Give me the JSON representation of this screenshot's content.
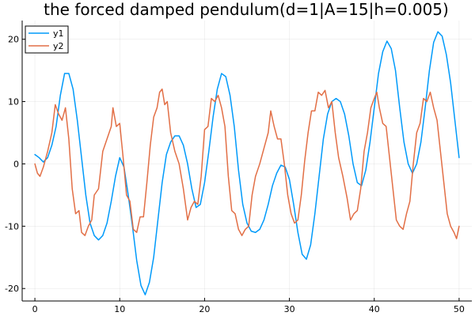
{
  "chart_data": {
    "type": "line",
    "title": "the forced damped pendulum(d=1|A=15|h=0.005)",
    "xlabel": "",
    "ylabel": "",
    "xlim": [
      -1.5,
      51.5
    ],
    "ylim": [
      -22,
      23
    ],
    "x_ticks": [
      0,
      10,
      20,
      30,
      40,
      50
    ],
    "y_ticks": [
      -20,
      -10,
      0,
      10,
      20
    ],
    "x_tick_labels": [
      "0",
      "10",
      "20",
      "30",
      "40",
      "50"
    ],
    "y_tick_labels": [
      "-20",
      "-10",
      "0",
      "10",
      "20"
    ],
    "grid": true,
    "legend_position": "top-left",
    "series": [
      {
        "name": "y1",
        "color": "#009AFA",
        "points": [
          [
            0,
            1.5
          ],
          [
            0.5,
            1.0
          ],
          [
            1.0,
            0.3
          ],
          [
            1.5,
            1.0
          ],
          [
            2.0,
            3.0
          ],
          [
            2.5,
            6.0
          ],
          [
            3.0,
            11.0
          ],
          [
            3.5,
            14.5
          ],
          [
            4.0,
            14.5
          ],
          [
            4.5,
            12.0
          ],
          [
            5.0,
            7.0
          ],
          [
            5.5,
            1.0
          ],
          [
            6.0,
            -5.0
          ],
          [
            6.5,
            -9.5
          ],
          [
            7.0,
            -11.5
          ],
          [
            7.5,
            -12.2
          ],
          [
            8.0,
            -11.5
          ],
          [
            8.5,
            -9.5
          ],
          [
            9.0,
            -6.0
          ],
          [
            9.5,
            -2.0
          ],
          [
            10.0,
            1.0
          ],
          [
            10.5,
            -0.5
          ],
          [
            11.0,
            -5.0
          ],
          [
            11.5,
            -10.0
          ],
          [
            12.0,
            -15.5
          ],
          [
            12.5,
            -19.5
          ],
          [
            13.0,
            -21.0
          ],
          [
            13.5,
            -19.0
          ],
          [
            14.0,
            -15.0
          ],
          [
            14.5,
            -9.0
          ],
          [
            15.0,
            -3.0
          ],
          [
            15.5,
            1.5
          ],
          [
            16.0,
            3.5
          ],
          [
            16.5,
            4.5
          ],
          [
            17.0,
            4.5
          ],
          [
            17.5,
            3.0
          ],
          [
            18.0,
            0.0
          ],
          [
            18.5,
            -4.0
          ],
          [
            19.0,
            -7.0
          ],
          [
            19.5,
            -6.5
          ],
          [
            20.0,
            -3.0
          ],
          [
            20.5,
            2.0
          ],
          [
            21.0,
            7.5
          ],
          [
            21.5,
            12.0
          ],
          [
            22.0,
            14.5
          ],
          [
            22.5,
            14.0
          ],
          [
            23.0,
            11.0
          ],
          [
            23.5,
            6.0
          ],
          [
            24.0,
            -1.0
          ],
          [
            24.5,
            -6.5
          ],
          [
            25.0,
            -9.5
          ],
          [
            25.5,
            -10.8
          ],
          [
            26.0,
            -11.0
          ],
          [
            26.5,
            -10.5
          ],
          [
            27.0,
            -9.0
          ],
          [
            27.5,
            -6.5
          ],
          [
            28.0,
            -3.5
          ],
          [
            28.5,
            -1.5
          ],
          [
            29.0,
            -0.2
          ],
          [
            29.5,
            -0.5
          ],
          [
            30.0,
            -2.5
          ],
          [
            30.5,
            -6.5
          ],
          [
            31.0,
            -11.0
          ],
          [
            31.5,
            -14.5
          ],
          [
            32.0,
            -15.3
          ],
          [
            32.5,
            -13.0
          ],
          [
            33.0,
            -8.0
          ],
          [
            33.5,
            -2.0
          ],
          [
            34.0,
            4.0
          ],
          [
            34.5,
            8.0
          ],
          [
            35.0,
            10.0
          ],
          [
            35.5,
            10.5
          ],
          [
            36.0,
            10.0
          ],
          [
            36.5,
            8.0
          ],
          [
            37.0,
            4.5
          ],
          [
            37.5,
            0.0
          ],
          [
            38.0,
            -3.0
          ],
          [
            38.5,
            -3.5
          ],
          [
            39.0,
            -1.0
          ],
          [
            39.5,
            3.5
          ],
          [
            40.0,
            9.0
          ],
          [
            40.5,
            14.5
          ],
          [
            41.0,
            18.0
          ],
          [
            41.5,
            19.7
          ],
          [
            42.0,
            18.5
          ],
          [
            42.5,
            15.0
          ],
          [
            43.0,
            9.0
          ],
          [
            43.5,
            3.5
          ],
          [
            44.0,
            0.0
          ],
          [
            44.5,
            -1.5
          ],
          [
            45.0,
            0.0
          ],
          [
            45.5,
            3.5
          ],
          [
            46.0,
            9.0
          ],
          [
            46.5,
            15.0
          ],
          [
            47.0,
            19.5
          ],
          [
            47.5,
            21.2
          ],
          [
            48.0,
            20.5
          ],
          [
            48.5,
            17.5
          ],
          [
            49.0,
            13.0
          ],
          [
            49.5,
            7.0
          ],
          [
            50.0,
            1.0
          ]
        ]
      },
      {
        "name": "y2",
        "color": "#E26F46",
        "points": [
          [
            0,
            0.0
          ],
          [
            0.3,
            -1.5
          ],
          [
            0.6,
            -2.0
          ],
          [
            1.0,
            -0.5
          ],
          [
            1.5,
            2.0
          ],
          [
            2.0,
            5.0
          ],
          [
            2.4,
            9.5
          ],
          [
            2.8,
            8.0
          ],
          [
            3.2,
            7.0
          ],
          [
            3.6,
            9.0
          ],
          [
            4.0,
            4.0
          ],
          [
            4.4,
            -4.0
          ],
          [
            4.8,
            -8.0
          ],
          [
            5.2,
            -7.5
          ],
          [
            5.5,
            -11.0
          ],
          [
            5.9,
            -11.5
          ],
          [
            6.3,
            -10.0
          ],
          [
            6.7,
            -9.0
          ],
          [
            7.0,
            -5.0
          ],
          [
            7.5,
            -4.0
          ],
          [
            8.0,
            2.0
          ],
          [
            8.5,
            4.0
          ],
          [
            9.0,
            6.0
          ],
          [
            9.2,
            9.0
          ],
          [
            9.6,
            6.0
          ],
          [
            10.0,
            6.5
          ],
          [
            10.4,
            1.0
          ],
          [
            10.8,
            -5.0
          ],
          [
            11.2,
            -6.0
          ],
          [
            11.6,
            -10.5
          ],
          [
            12.0,
            -11.0
          ],
          [
            12.4,
            -8.5
          ],
          [
            12.8,
            -8.5
          ],
          [
            13.2,
            -3.0
          ],
          [
            13.6,
            3.0
          ],
          [
            14.0,
            7.5
          ],
          [
            14.4,
            9.0
          ],
          [
            14.7,
            11.5
          ],
          [
            15.0,
            12.0
          ],
          [
            15.3,
            9.5
          ],
          [
            15.6,
            10.0
          ],
          [
            16.0,
            5.0
          ],
          [
            16.5,
            2.0
          ],
          [
            17.0,
            0.0
          ],
          [
            17.5,
            -4.0
          ],
          [
            18.0,
            -9.0
          ],
          [
            18.4,
            -7.0
          ],
          [
            18.8,
            -6.0
          ],
          [
            19.2,
            -6.5
          ],
          [
            19.6,
            -2.0
          ],
          [
            20.0,
            5.5
          ],
          [
            20.4,
            6.0
          ],
          [
            20.8,
            10.5
          ],
          [
            21.2,
            10.0
          ],
          [
            21.6,
            11.0
          ],
          [
            22.0,
            9.0
          ],
          [
            22.4,
            6.0
          ],
          [
            22.8,
            -2.0
          ],
          [
            23.2,
            -7.5
          ],
          [
            23.6,
            -8.0
          ],
          [
            24.0,
            -10.5
          ],
          [
            24.4,
            -11.5
          ],
          [
            24.8,
            -10.5
          ],
          [
            25.2,
            -10.0
          ],
          [
            25.6,
            -5.0
          ],
          [
            26.0,
            -2.0
          ],
          [
            26.5,
            0.0
          ],
          [
            27.0,
            2.5
          ],
          [
            27.5,
            5.0
          ],
          [
            27.8,
            8.5
          ],
          [
            28.2,
            6.0
          ],
          [
            28.6,
            4.0
          ],
          [
            29.0,
            4.0
          ],
          [
            29.4,
            0.0
          ],
          [
            29.8,
            -5.0
          ],
          [
            30.2,
            -8.0
          ],
          [
            30.6,
            -9.5
          ],
          [
            31.0,
            -9.0
          ],
          [
            31.4,
            -5.0
          ],
          [
            31.8,
            0.5
          ],
          [
            32.2,
            5.0
          ],
          [
            32.6,
            8.5
          ],
          [
            33.0,
            8.5
          ],
          [
            33.4,
            11.5
          ],
          [
            33.8,
            11.0
          ],
          [
            34.2,
            11.8
          ],
          [
            34.6,
            9.0
          ],
          [
            35.0,
            10.0
          ],
          [
            35.4,
            5.0
          ],
          [
            35.8,
            1.0
          ],
          [
            36.3,
            -2.0
          ],
          [
            36.8,
            -5.5
          ],
          [
            37.2,
            -9.0
          ],
          [
            37.6,
            -8.0
          ],
          [
            38.0,
            -7.5
          ],
          [
            38.4,
            -4.0
          ],
          [
            38.8,
            2.0
          ],
          [
            39.2,
            5.0
          ],
          [
            39.6,
            9.0
          ],
          [
            40.0,
            10.5
          ],
          [
            40.3,
            11.5
          ],
          [
            40.6,
            9.0
          ],
          [
            41.0,
            6.5
          ],
          [
            41.4,
            6.0
          ],
          [
            41.8,
            1.0
          ],
          [
            42.2,
            -4.0
          ],
          [
            42.6,
            -9.0
          ],
          [
            43.0,
            -10.0
          ],
          [
            43.4,
            -10.5
          ],
          [
            43.8,
            -8.0
          ],
          [
            44.2,
            -6.0
          ],
          [
            44.6,
            0.0
          ],
          [
            45.0,
            5.0
          ],
          [
            45.4,
            6.5
          ],
          [
            45.8,
            10.5
          ],
          [
            46.2,
            10.0
          ],
          [
            46.6,
            11.5
          ],
          [
            47.0,
            9.0
          ],
          [
            47.4,
            7.0
          ],
          [
            47.8,
            2.0
          ],
          [
            48.2,
            -3.0
          ],
          [
            48.6,
            -8.0
          ],
          [
            49.0,
            -10.0
          ],
          [
            49.4,
            -11.0
          ],
          [
            49.7,
            -12.0
          ],
          [
            50.0,
            -10.0
          ]
        ]
      }
    ]
  }
}
